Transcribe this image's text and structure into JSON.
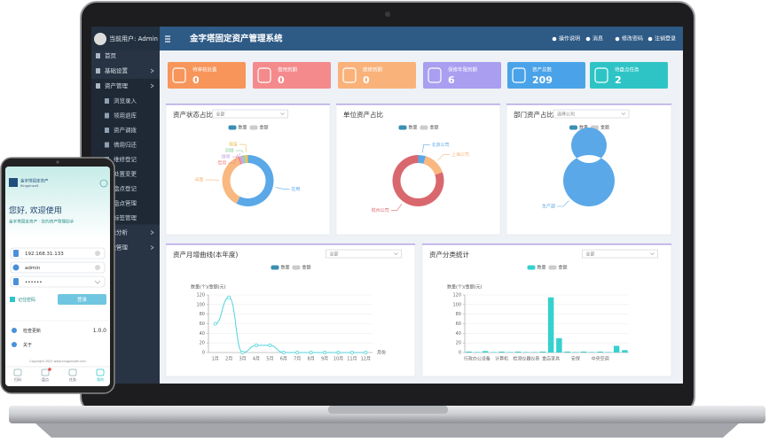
{
  "app": {
    "title": "金字塔固定资产管理系统",
    "user": "当前用户: Admin"
  },
  "toolbar": [
    "操作说明",
    "消息",
    "修改密码",
    "注销登录"
  ],
  "sidebar": [
    {
      "label": "首页"
    },
    {
      "label": "基础设置"
    },
    {
      "label": "资产管理",
      "children": [
        "浏览录入",
        "领用退库",
        "资产调拨",
        "借用归还",
        "维修登记",
        "处置变更",
        "盘点登记",
        "盘点管理",
        "标签管理"
      ]
    },
    {
      "label": "报表分析"
    },
    {
      "label": "系统管理"
    }
  ],
  "stats": [
    {
      "label": "待审核处置",
      "value": 0,
      "color": "#f7955b"
    },
    {
      "label": "借用到期",
      "value": 0,
      "color": "#f48a8c"
    },
    {
      "label": "维修到期",
      "value": 0,
      "color": "#f9b27a"
    },
    {
      "label": "保修年限到期",
      "value": 6,
      "color": "#a99ef0"
    },
    {
      "label": "资产总数",
      "value": 209,
      "color": "#4aa3e8"
    },
    {
      "label": "待盘点任务",
      "value": 2,
      "color": "#2ec4c6"
    }
  ],
  "chart_data": [
    {
      "type": "donut",
      "title": "资产状态占比",
      "filter": "全部",
      "legend": [
        "数量",
        "金额"
      ],
      "categories": [
        "在用",
        "闲置",
        "借用",
        "维修",
        "调拨",
        "报废"
      ],
      "values": [
        120,
        75,
        3,
        4,
        3,
        4
      ],
      "colors": [
        "#5aa8e8",
        "#f9b880",
        "#f08a8a",
        "#c9a6e8",
        "#8fd19e",
        "#e8c45a"
      ]
    },
    {
      "type": "donut",
      "title": "单位资产占比",
      "legend": [
        "数量",
        "金额"
      ],
      "categories": [
        "北京公司",
        "上海公司",
        "杭州公司"
      ],
      "values": [
        10,
        31,
        168
      ],
      "colors": [
        "#5aa8e8",
        "#f9b880",
        "#d9686e"
      ]
    },
    {
      "type": "donut",
      "title": "部门资产占比",
      "filter": "选择公司",
      "legend": [
        "数量",
        "金额"
      ],
      "categories": [
        "生产部"
      ],
      "values": [
        209
      ],
      "colors": [
        "#5aa8e8"
      ]
    },
    {
      "type": "line",
      "title": "资产月增曲线(本年度)",
      "filter": "全部",
      "legend": [
        "数量",
        "金额"
      ],
      "y_label": "数量(个)/金额(元)",
      "x_label": "月份",
      "categories": [
        "1月",
        "2月",
        "3月",
        "4月",
        "5月",
        "6月",
        "7月",
        "8月",
        "9月",
        "10月",
        "11月",
        "12月"
      ],
      "values": [
        60,
        115,
        0,
        15,
        15,
        0,
        0,
        0,
        0,
        0,
        0,
        0
      ],
      "color": "#4fd3dc",
      "ylim": [
        0,
        120
      ],
      "yticks": [
        0,
        20,
        40,
        60,
        80,
        100,
        120
      ],
      "grid": true
    },
    {
      "type": "bar",
      "title": "资产分类统计",
      "filter": "全部",
      "legend": [
        "数量",
        "金额"
      ],
      "y_label": "数量(个)/金额(元)",
      "categories": [
        null,
        "行政办公设备",
        null,
        null,
        "计算机",
        null,
        null,
        "检测仪器仪表",
        null,
        null,
        "金店家具",
        null,
        null,
        "安保",
        null,
        null,
        "中央空调",
        null,
        null,
        null
      ],
      "values": [
        2,
        1,
        3,
        1,
        2,
        1,
        2,
        1,
        1,
        2,
        115,
        30,
        2,
        1,
        2,
        1,
        2,
        1,
        14,
        5
      ],
      "color": "#36d1cf",
      "ylim": [
        0,
        120
      ],
      "yticks": [
        0,
        20,
        40,
        60,
        80,
        100,
        120
      ],
      "grid": true
    }
  ],
  "phone": {
    "app_name": "金字塔固定资产",
    "app_subtitle": "Kingpinsoft",
    "greeting": "您好, 欢迎使用",
    "tagline": "金字塔固定资产 · 您的资产管理助手",
    "server": "192.168.31.133",
    "username": "admin",
    "password": "••••••",
    "remember": "记住密码",
    "login": "登录",
    "update": "检查更新",
    "version": "1.0.0",
    "about": "关于",
    "copyright": "Copyright 2022 www.kingpinsoft.com",
    "tabs": [
      "扫码",
      "盘点",
      "任务",
      "我的"
    ]
  }
}
